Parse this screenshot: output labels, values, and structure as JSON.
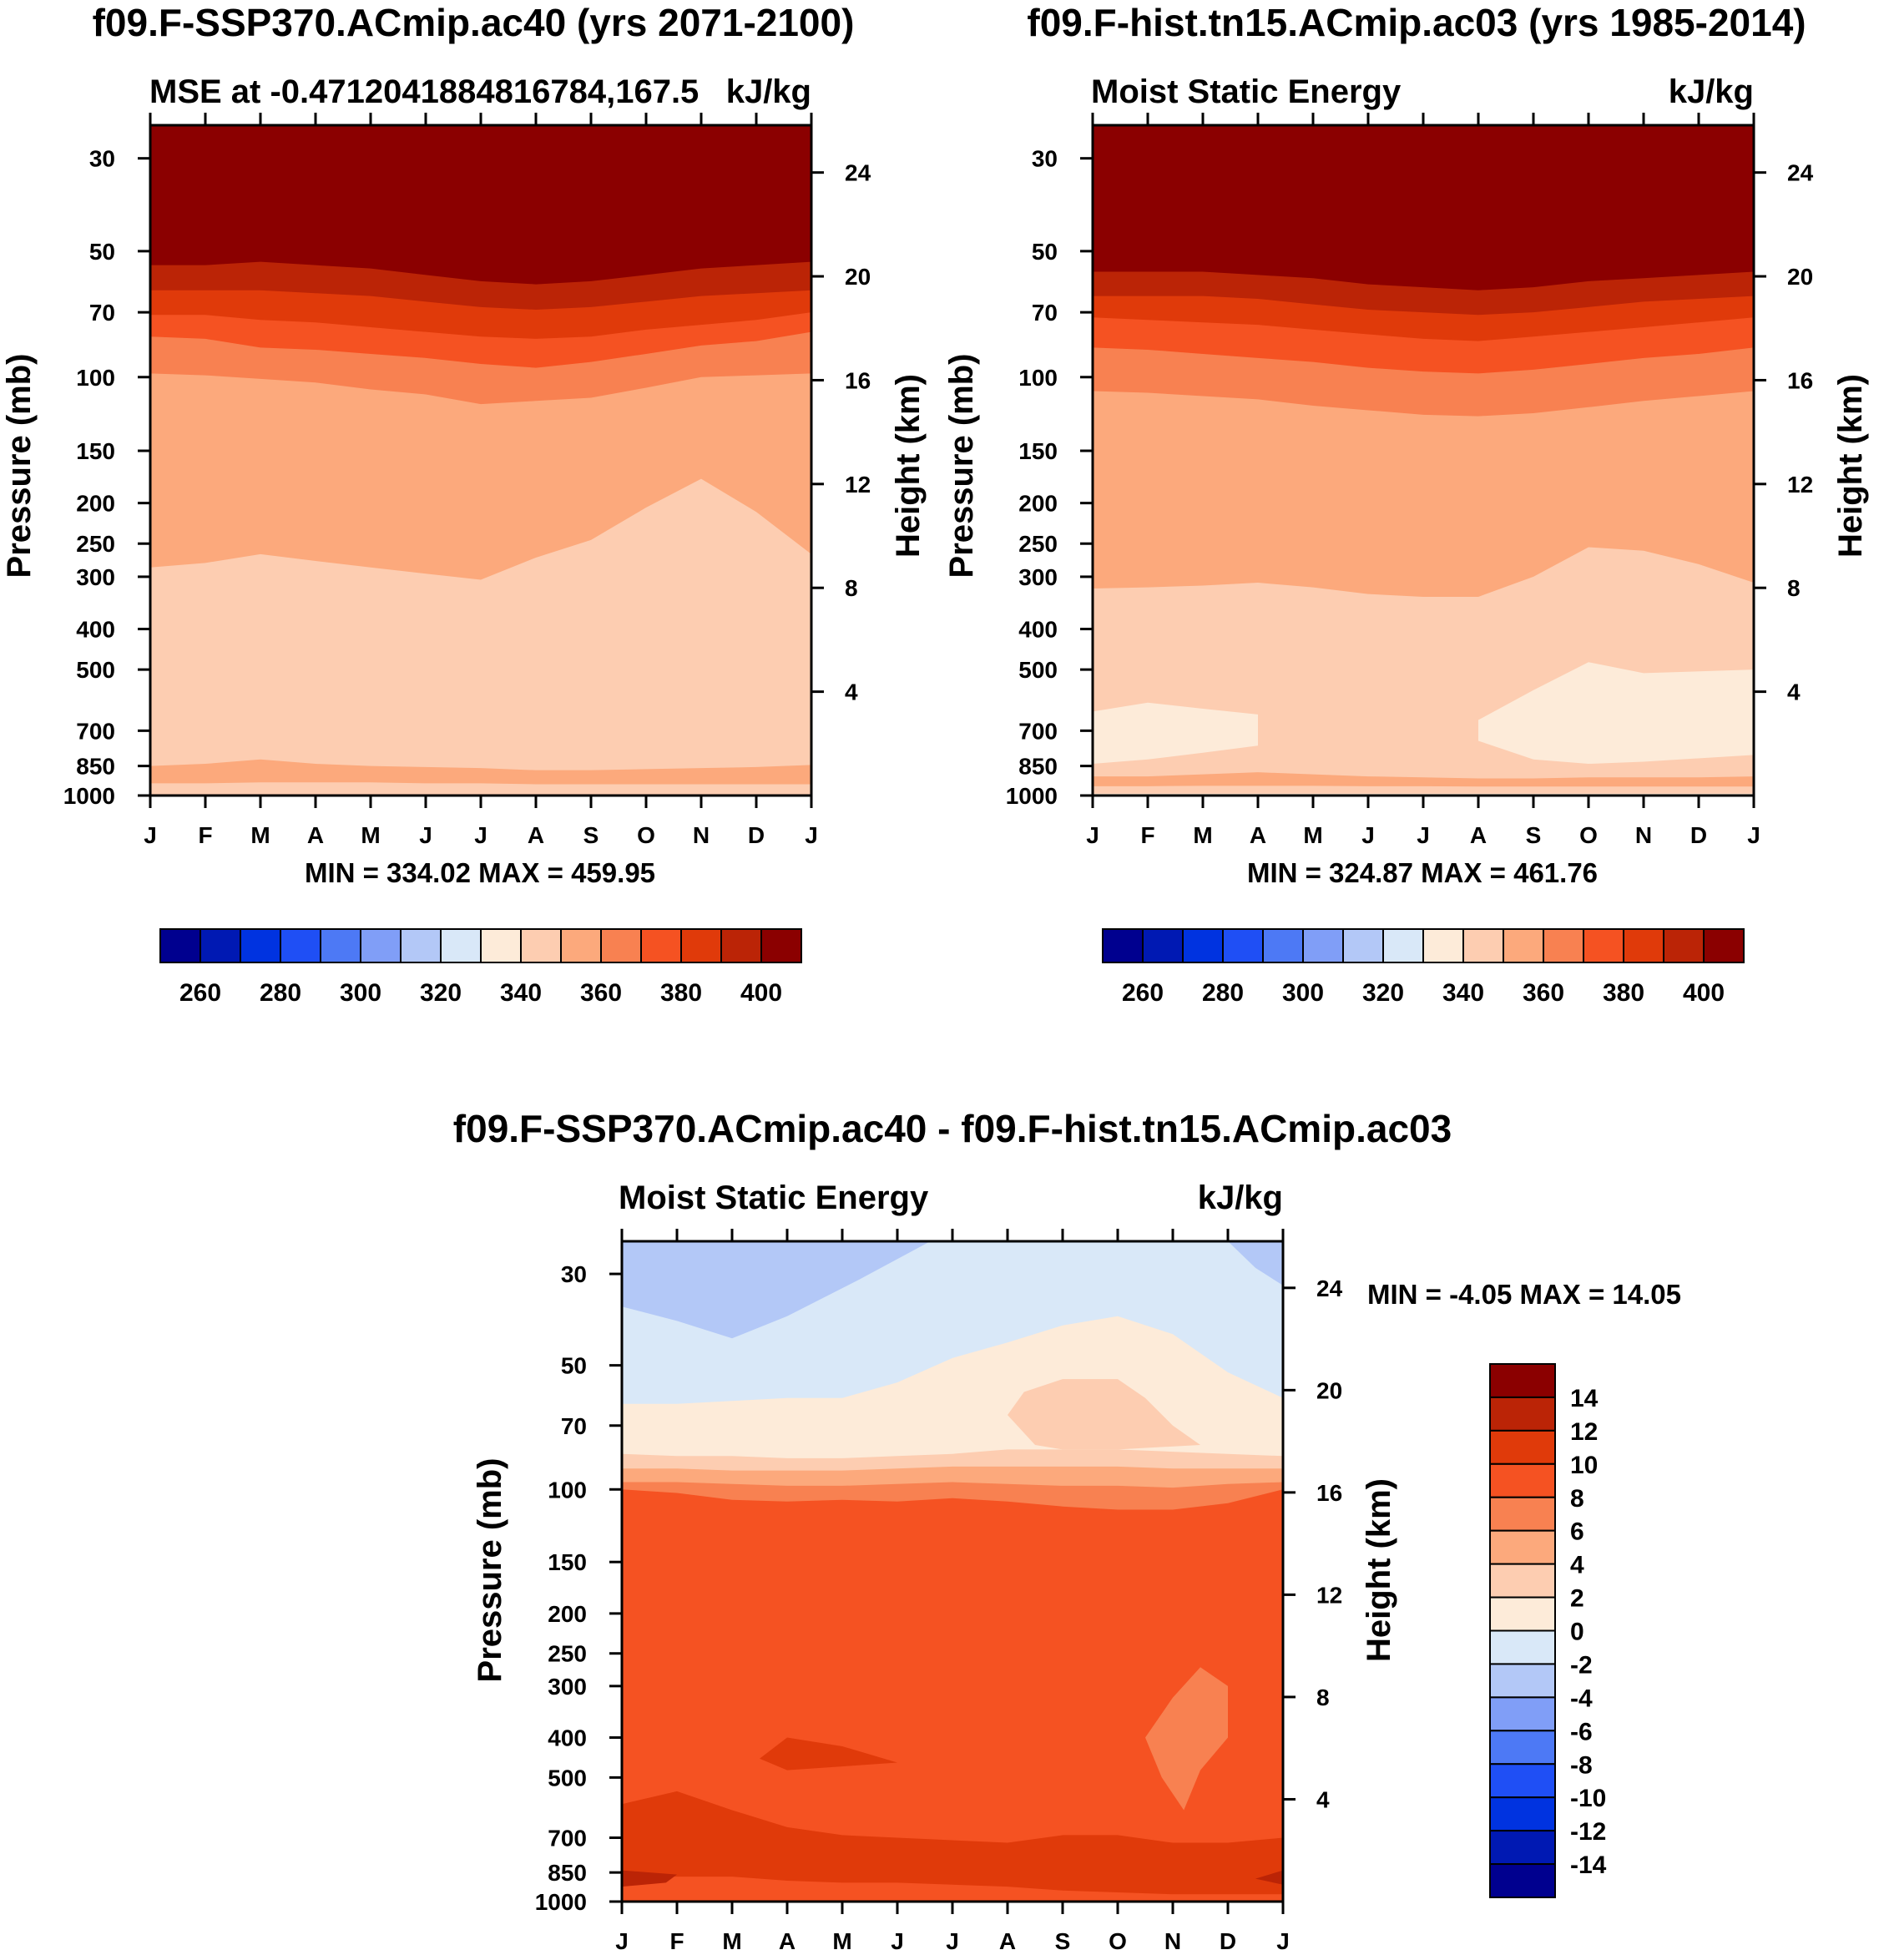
{
  "chart_data": [
    {
      "type": "heatmap",
      "title": "f09.F-SSP370.ACmip.ac40 (yrs 2071-2100)",
      "left_label": "MSE at -0.471204188481678​4,167.5",
      "right_label": "kJ/kg",
      "ylabel": "Pressure (mb)",
      "y2label": "Height (km)",
      "x_ticks": [
        "J",
        "F",
        "M",
        "A",
        "M",
        "J",
        "J",
        "A",
        "S",
        "O",
        "N",
        "D",
        "J"
      ],
      "p_ticks": [
        30,
        50,
        70,
        100,
        150,
        200,
        250,
        300,
        400,
        500,
        700,
        850,
        1000
      ],
      "z_ticks": [
        24,
        20,
        16,
        12,
        8,
        4
      ],
      "ylim_mb": [
        1000,
        25
      ],
      "stats": "MIN = 334.02 MAX = 459.95",
      "colorbar": {
        "orientation": "horizontal",
        "levels": [
          250,
          260,
          270,
          280,
          290,
          300,
          310,
          320,
          330,
          340,
          350,
          360,
          370,
          380,
          390,
          400,
          410
        ],
        "labels": [
          "260",
          "280",
          "300",
          "320",
          "340",
          "360",
          "380",
          "400"
        ]
      },
      "bands_top_down": [
        {
          "value_above": 400,
          "boundary_mb": [
            54,
            54,
            53,
            54,
            55,
            57,
            59,
            60,
            59,
            57,
            55,
            54,
            53
          ]
        },
        {
          "value_above": 390,
          "boundary_mb": [
            62,
            62,
            62,
            63,
            64,
            66,
            68,
            69,
            68,
            66,
            64,
            63,
            62
          ]
        },
        {
          "value_above": 380,
          "boundary_mb": [
            71,
            71,
            73,
            74,
            76,
            78,
            80,
            81,
            80,
            77,
            75,
            73,
            70
          ]
        },
        {
          "value_above": 370,
          "boundary_mb": [
            80,
            81,
            85,
            86,
            88,
            90,
            93,
            95,
            92,
            88,
            84,
            82,
            78
          ]
        },
        {
          "value_above": 360,
          "boundary_mb": [
            98,
            99,
            101,
            103,
            107,
            110,
            116,
            114,
            112,
            106,
            100,
            99,
            98
          ]
        },
        {
          "value_above": 350,
          "boundary_mb": [
            285,
            278,
            265,
            275,
            285,
            295,
            305,
            270,
            245,
            205,
            175,
            210,
            265
          ]
        },
        {
          "value_above": 340,
          "boundary_mb": [
            850,
            840,
            820,
            840,
            850,
            855,
            860,
            870,
            870,
            865,
            860,
            855,
            845
          ]
        },
        {
          "value_above": 350,
          "boundary_mb": [
            935,
            935,
            930,
            930,
            930,
            935,
            935,
            940,
            940,
            940,
            940,
            940,
            940
          ]
        }
      ]
    },
    {
      "type": "heatmap",
      "title": "f09.F-hist.tn15.ACmip.ac03 (yrs 1985-2014)",
      "left_label": "Moist Static Energy",
      "right_label": "kJ/kg",
      "ylabel": "Pressure (mb)",
      "y2label": "Height (km)",
      "x_ticks": [
        "J",
        "F",
        "M",
        "A",
        "M",
        "J",
        "J",
        "A",
        "S",
        "O",
        "N",
        "D",
        "J"
      ],
      "p_ticks": [
        30,
        50,
        70,
        100,
        150,
        200,
        250,
        300,
        400,
        500,
        700,
        850,
        1000
      ],
      "z_ticks": [
        24,
        20,
        16,
        12,
        8,
        4
      ],
      "ylim_mb": [
        1000,
        25
      ],
      "stats": "MIN = 324.87 MAX = 461.76",
      "colorbar": {
        "orientation": "horizontal",
        "levels": [
          250,
          260,
          270,
          280,
          290,
          300,
          310,
          320,
          330,
          340,
          350,
          360,
          370,
          380,
          390,
          400,
          410
        ],
        "labels": [
          "260",
          "280",
          "300",
          "320",
          "340",
          "360",
          "380",
          "400"
        ]
      },
      "bands_top_down": [
        {
          "value_above": 400,
          "boundary_mb": [
            56,
            56,
            56,
            57,
            58,
            60,
            61,
            62,
            61,
            59,
            58,
            57,
            56
          ]
        },
        {
          "value_above": 390,
          "boundary_mb": [
            64,
            64,
            64,
            65,
            67,
            69,
            70,
            71,
            70,
            68,
            66,
            65,
            64
          ]
        },
        {
          "value_above": 380,
          "boundary_mb": [
            72,
            73,
            74,
            75,
            77,
            79,
            81,
            82,
            80,
            78,
            76,
            74,
            72
          ]
        },
        {
          "value_above": 370,
          "boundary_mb": [
            85,
            86,
            88,
            90,
            92,
            95,
            97,
            98,
            96,
            93,
            90,
            88,
            85
          ]
        },
        {
          "value_above": 360,
          "boundary_mb": [
            108,
            109,
            111,
            113,
            117,
            120,
            123,
            124,
            122,
            118,
            114,
            111,
            108
          ]
        },
        {
          "value_above": 350,
          "boundary_mb": [
            320,
            318,
            315,
            310,
            318,
            330,
            335,
            335,
            300,
            255,
            260,
            280,
            310
          ]
        },
        {
          "value_above": 340,
          "boundary_mb": [
            900,
            900,
            890,
            880,
            890,
            900,
            905,
            910,
            910,
            905,
            905,
            905,
            900
          ]
        },
        {
          "value_above": 350,
          "boundary_mb": [
            950,
            950,
            948,
            948,
            948,
            950,
            950,
            952,
            952,
            952,
            952,
            952,
            952
          ]
        },
        {
          "value_above": 340,
          "boundary_mb": [
            990,
            990,
            990,
            990,
            990,
            990,
            990,
            990,
            990,
            990,
            990,
            990,
            990
          ]
        }
      ],
      "patches": [
        {
          "value": 330,
          "lobes": [
            [
              [
                0,
                630
              ],
              [
                1,
                600
              ],
              [
                2,
                620
              ],
              [
                3,
                640
              ],
              [
                3,
                760
              ],
              [
                2,
                790
              ],
              [
                1,
                820
              ],
              [
                0,
                840
              ]
            ],
            [
              [
                7,
                660
              ],
              [
                8,
                560
              ],
              [
                9,
                480
              ],
              [
                10,
                510
              ],
              [
                12,
                500
              ],
              [
                12,
                800
              ],
              [
                10,
                830
              ],
              [
                9,
                840
              ],
              [
                8,
                820
              ],
              [
                7,
                740
              ]
            ]
          ]
        }
      ]
    },
    {
      "type": "heatmap",
      "title": "f09.F-SSP370.ACmip.ac40 - f09.F-hist.tn15.ACmip.ac03",
      "left_label": "Moist Static Energy",
      "right_label": "kJ/kg",
      "ylabel": "Pressure (mb)",
      "y2label": "Height (km)",
      "x_ticks": [
        "J",
        "F",
        "M",
        "A",
        "M",
        "J",
        "J",
        "A",
        "S",
        "O",
        "N",
        "D",
        "J"
      ],
      "p_ticks": [
        30,
        50,
        70,
        100,
        150,
        200,
        250,
        300,
        400,
        500,
        700,
        850,
        1000
      ],
      "z_ticks": [
        24,
        20,
        16,
        12,
        8,
        4
      ],
      "ylim_mb": [
        1000,
        25
      ],
      "stats": "MIN =  -4.05 MAX =  14.05",
      "colorbar": {
        "orientation": "vertical",
        "levels": [
          -16,
          -14,
          -12,
          -10,
          -8,
          -6,
          -4,
          -2,
          0,
          2,
          4,
          6,
          8,
          10,
          12,
          14,
          16
        ],
        "labels": [
          "14",
          "12",
          "10",
          "8",
          "6",
          "4",
          "2",
          "0",
          "-2",
          "-4",
          "-6",
          "-8",
          "-10",
          "-12",
          "-14"
        ]
      },
      "bands_top_down": [
        {
          "value_above": -1,
          "boundary_mb": [
            62,
            62,
            61,
            60,
            60,
            55,
            48,
            44,
            40,
            38,
            42,
            52,
            60
          ]
        },
        {
          "value_above": 1,
          "boundary_mb": [
            82,
            83,
            83,
            84,
            84,
            83,
            82,
            80,
            80,
            80,
            81,
            82,
            83
          ]
        },
        {
          "value_above": 3,
          "boundary_mb": [
            89,
            89,
            90,
            90,
            90,
            89,
            88,
            88,
            88,
            88,
            89,
            89,
            89
          ]
        },
        {
          "value_above": 5,
          "boundary_mb": [
            96,
            96,
            97,
            98,
            98,
            97,
            96,
            97,
            98,
            98,
            99,
            97,
            96
          ]
        },
        {
          "value_above": 7,
          "boundary_mb": [
            100,
            102,
            106,
            107,
            106,
            107,
            105,
            107,
            110,
            112,
            112,
            108,
            100
          ]
        },
        {
          "value_above": 9,
          "boundary_mb": [
            580,
            540,
            600,
            660,
            690,
            700,
            710,
            720,
            690,
            690,
            720,
            720,
            700
          ]
        },
        {
          "value_above": 11,
          "boundary_mb": [
            870,
            870,
            870,
            890,
            900,
            900,
            910,
            920,
            940,
            950,
            960,
            960,
            960
          ]
        }
      ],
      "patches": [
        {
          "value": -3,
          "lobes": [
            [
              [
                0,
                25
              ],
              [
                5.6,
                25
              ],
              [
                4.3,
                31
              ],
              [
                3,
                38
              ],
              [
                2,
                43
              ],
              [
                1,
                39
              ],
              [
                0,
                36
              ]
            ],
            [
              [
                11,
                25
              ],
              [
                12,
                25
              ],
              [
                12,
                32
              ],
              [
                11.5,
                29
              ]
            ]
          ]
        },
        {
          "value": 3,
          "lobes": [
            [
              [
                7,
                66
              ],
              [
                7.3,
                58
              ],
              [
                8,
                54
              ],
              [
                9,
                54
              ],
              [
                9.5,
                60
              ],
              [
                10,
                70
              ],
              [
                10.5,
                78
              ],
              [
                9,
                80
              ],
              [
                8,
                80
              ],
              [
                7.5,
                78
              ]
            ]
          ]
        },
        {
          "value": 7,
          "lobes": [
            [
              [
                9.5,
                400
              ],
              [
                10,
                320
              ],
              [
                10.5,
                270
              ],
              [
                11,
                300
              ],
              [
                11,
                400
              ],
              [
                10.5,
                480
              ],
              [
                10.2,
                600
              ],
              [
                9.8,
                500
              ]
            ]
          ]
        },
        {
          "value": 11,
          "lobes": [
            [
              [
                2.5,
                450
              ],
              [
                3,
                400
              ],
              [
                4,
                420
              ],
              [
                5,
                460
              ],
              [
                4,
                470
              ],
              [
                3,
                480
              ]
            ]
          ]
        },
        {
          "value": 13,
          "lobes": [
            [
              [
                0,
                840
              ],
              [
                1,
                860
              ],
              [
                0.8,
                900
              ],
              [
                0,
                920
              ]
            ],
            [
              [
                12,
                840
              ],
              [
                11.5,
                880
              ],
              [
                12,
                910
              ]
            ]
          ]
        }
      ]
    }
  ]
}
